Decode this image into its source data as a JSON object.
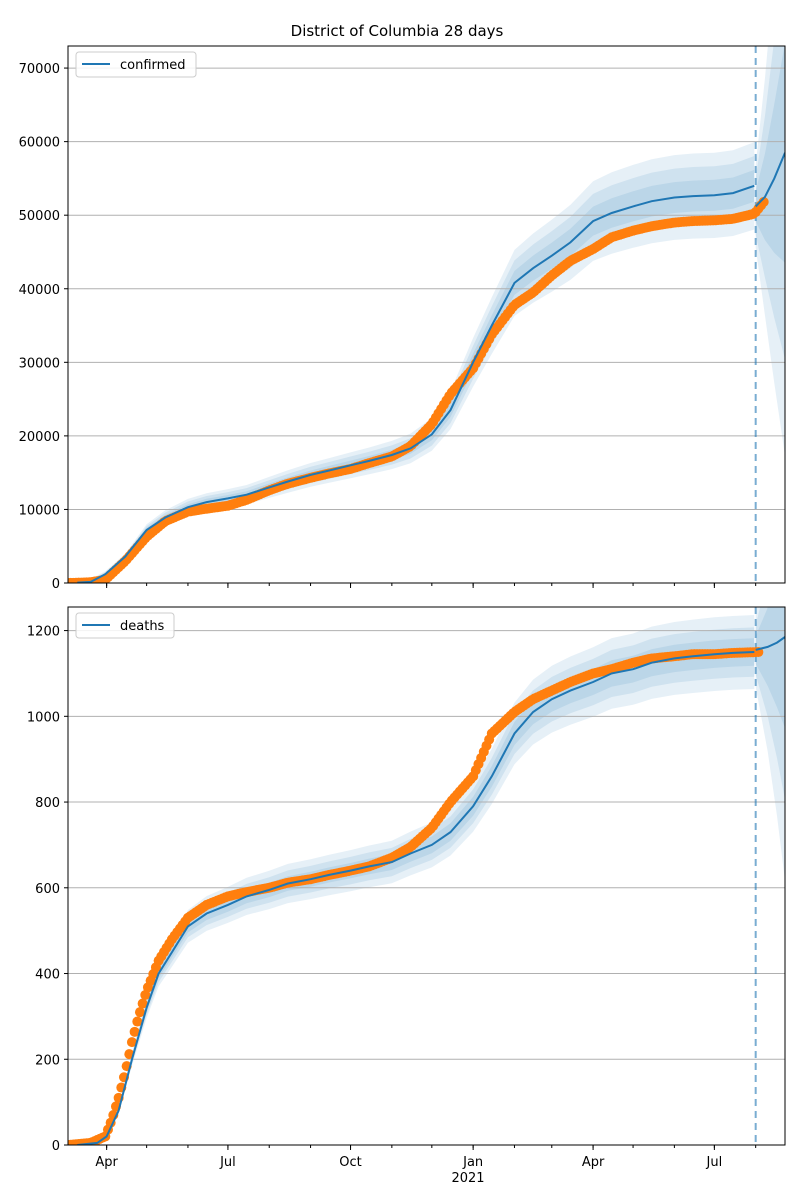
{
  "figure": {
    "title": "District of Columbia 28 days",
    "xaxis_year_label": "2021"
  },
  "x_ticks": [
    {
      "label": "Apr",
      "date": "2020-04-01"
    },
    {
      "label": "Jul",
      "date": "2020-07-01"
    },
    {
      "label": "Oct",
      "date": "2020-10-01"
    },
    {
      "label": "Jan",
      "date": "2021-01-01"
    },
    {
      "label": "Apr",
      "date": "2021-04-01"
    },
    {
      "label": "Jul",
      "date": "2021-07-01"
    }
  ],
  "colors": {
    "model": "#1f77b4",
    "observed": "#ff7f0e",
    "grid": "#b0b0b0",
    "band": "#1f77b4"
  },
  "chart_data": [
    {
      "type": "line",
      "legend": "confirmed",
      "legend_position": "upper-left",
      "grid": "horizontal",
      "xlim": [
        "2020-03-03",
        "2021-08-23"
      ],
      "ylim": [
        0,
        73000
      ],
      "yticks": [
        0,
        10000,
        20000,
        30000,
        40000,
        50000,
        60000,
        70000
      ],
      "forecast_start": "2021-08-01",
      "series": [
        {
          "name": "confirmed",
          "role": "model fit",
          "x": [
            "2020-03-10",
            "2020-03-20",
            "2020-03-31",
            "2020-04-15",
            "2020-05-01",
            "2020-05-15",
            "2020-06-01",
            "2020-06-15",
            "2020-07-01",
            "2020-07-15",
            "2020-08-01",
            "2020-08-15",
            "2020-09-01",
            "2020-09-15",
            "2020-10-01",
            "2020-10-15",
            "2020-11-01",
            "2020-11-15",
            "2020-12-01",
            "2020-12-15",
            "2021-01-01",
            "2021-01-15",
            "2021-02-01",
            "2021-02-15",
            "2021-03-01",
            "2021-03-15",
            "2021-04-01",
            "2021-04-15",
            "2021-05-01",
            "2021-05-15",
            "2021-06-01",
            "2021-06-15",
            "2021-07-01",
            "2021-07-15",
            "2021-07-31"
          ],
          "y": [
            50,
            150,
            1200,
            3600,
            7200,
            8900,
            10300,
            11000,
            11500,
            12000,
            13000,
            13800,
            14700,
            15300,
            16000,
            16600,
            17400,
            18300,
            20200,
            23500,
            30000,
            35000,
            40800,
            42800,
            44500,
            46300,
            49200,
            50300,
            51200,
            51900,
            52400,
            52600,
            52700,
            53000,
            54000
          ]
        },
        {
          "name": "",
          "role": "forecast",
          "x": [
            "2021-08-01",
            "2021-08-08",
            "2021-08-15",
            "2021-08-23"
          ],
          "y": [
            51200,
            52500,
            55000,
            58500
          ]
        },
        {
          "name": "",
          "role": "observed",
          "x": [
            "2020-03-03",
            "2020-03-20",
            "2020-03-31",
            "2020-04-15",
            "2020-05-01",
            "2020-05-15",
            "2020-06-01",
            "2020-06-15",
            "2020-07-01",
            "2020-07-15",
            "2020-08-01",
            "2020-08-15",
            "2020-09-01",
            "2020-09-15",
            "2020-10-01",
            "2020-10-15",
            "2020-11-01",
            "2020-11-15",
            "2020-12-01",
            "2020-12-15",
            "2021-01-01",
            "2021-01-15",
            "2021-02-01",
            "2021-02-15",
            "2021-03-01",
            "2021-03-15",
            "2021-04-01",
            "2021-04-15",
            "2021-05-01",
            "2021-05-15",
            "2021-06-01",
            "2021-06-15",
            "2021-07-01",
            "2021-07-15",
            "2021-07-31",
            "2021-08-07"
          ],
          "y": [
            0,
            100,
            450,
            3000,
            6300,
            8400,
            9700,
            10100,
            10500,
            11300,
            12600,
            13500,
            14300,
            14900,
            15500,
            16300,
            17200,
            18600,
            21600,
            25700,
            29200,
            33800,
            37800,
            39500,
            41800,
            43800,
            45400,
            47000,
            47900,
            48500,
            49000,
            49200,
            49300,
            49500,
            50200,
            51800
          ]
        }
      ]
    },
    {
      "type": "line",
      "legend": "deaths",
      "legend_position": "upper-left",
      "grid": "horizontal",
      "xlim": [
        "2020-03-03",
        "2021-08-23"
      ],
      "ylim": [
        0,
        1255
      ],
      "yticks": [
        0,
        200,
        400,
        600,
        800,
        1000,
        1200
      ],
      "forecast_start": "2021-08-01",
      "series": [
        {
          "name": "deaths",
          "role": "model fit",
          "x": [
            "2020-03-10",
            "2020-03-25",
            "2020-04-01",
            "2020-04-10",
            "2020-04-20",
            "2020-05-01",
            "2020-05-10",
            "2020-05-20",
            "2020-06-01",
            "2020-06-15",
            "2020-07-01",
            "2020-07-15",
            "2020-08-01",
            "2020-08-15",
            "2020-09-01",
            "2020-09-15",
            "2020-10-01",
            "2020-10-15",
            "2020-11-01",
            "2020-11-15",
            "2020-12-01",
            "2020-12-15",
            "2021-01-01",
            "2021-01-15",
            "2021-02-01",
            "2021-02-15",
            "2021-03-01",
            "2021-03-15",
            "2021-04-01",
            "2021-04-15",
            "2021-05-01",
            "2021-05-15",
            "2021-06-01",
            "2021-06-15",
            "2021-07-01",
            "2021-07-15",
            "2021-07-31"
          ],
          "y": [
            0,
            5,
            20,
            80,
            200,
            320,
            400,
            450,
            510,
            540,
            560,
            580,
            595,
            610,
            620,
            630,
            640,
            650,
            660,
            680,
            700,
            730,
            790,
            860,
            960,
            1010,
            1040,
            1060,
            1080,
            1100,
            1110,
            1125,
            1135,
            1140,
            1145,
            1148,
            1150
          ]
        },
        {
          "name": "",
          "role": "forecast",
          "x": [
            "2021-08-01",
            "2021-08-10",
            "2021-08-17",
            "2021-08-23"
          ],
          "y": [
            1155,
            1162,
            1172,
            1185
          ]
        },
        {
          "name": "",
          "role": "observed",
          "x": [
            "2020-03-03",
            "2020-03-20",
            "2020-03-31",
            "2020-04-05",
            "2020-04-10",
            "2020-04-15",
            "2020-04-20",
            "2020-04-25",
            "2020-05-01",
            "2020-05-10",
            "2020-05-20",
            "2020-06-01",
            "2020-06-15",
            "2020-07-01",
            "2020-07-15",
            "2020-08-01",
            "2020-08-15",
            "2020-09-01",
            "2020-09-15",
            "2020-10-01",
            "2020-10-15",
            "2020-11-01",
            "2020-11-15",
            "2020-12-01",
            "2020-12-15",
            "2021-01-01",
            "2021-01-15",
            "2021-02-01",
            "2021-02-15",
            "2021-03-01",
            "2021-03-15",
            "2021-04-01",
            "2021-04-15",
            "2021-05-01",
            "2021-05-15",
            "2021-06-01",
            "2021-06-15",
            "2021-07-01",
            "2021-07-15",
            "2021-08-04"
          ],
          "y": [
            0,
            5,
            20,
            60,
            110,
            170,
            240,
            300,
            360,
            430,
            480,
            530,
            560,
            580,
            590,
            600,
            612,
            620,
            630,
            640,
            650,
            670,
            695,
            740,
            800,
            860,
            960,
            1010,
            1040,
            1060,
            1080,
            1100,
            1110,
            1125,
            1135,
            1140,
            1145,
            1145,
            1148,
            1150
          ]
        }
      ]
    }
  ]
}
